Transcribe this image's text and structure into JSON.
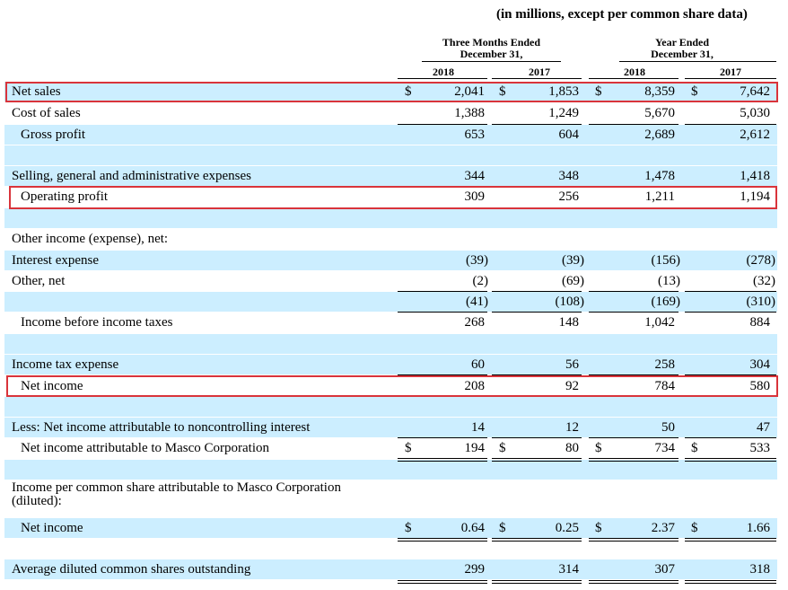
{
  "units_note": "(in millions, except per common share data)",
  "headers": {
    "three_months": [
      "Three Months Ended",
      "December 31,"
    ],
    "year_ended": [
      "Year Ended",
      "December 31,"
    ],
    "years": [
      "2018",
      "2017",
      "2018",
      "2017"
    ]
  },
  "currency": "$",
  "rows": {
    "net_sales": {
      "label": "Net sales",
      "values": [
        "2,041",
        "1,853",
        "8,359",
        "7,642"
      ]
    },
    "cost_of_sales": {
      "label": "Cost of sales",
      "values": [
        "1,388",
        "1,249",
        "5,670",
        "5,030"
      ]
    },
    "gross_profit": {
      "label": "Gross profit",
      "values": [
        "653",
        "604",
        "2,689",
        "2,612"
      ]
    },
    "sga": {
      "label": "Selling, general and administrative expenses",
      "values": [
        "344",
        "348",
        "1,478",
        "1,418"
      ]
    },
    "operating_profit": {
      "label": "Operating profit",
      "values": [
        "309",
        "256",
        "1,211",
        "1,194"
      ]
    },
    "other_income_header": {
      "label": "Other income (expense), net:"
    },
    "interest_expense": {
      "label": "Interest expense",
      "values": [
        "(39)",
        "(39)",
        "(156)",
        "(278)"
      ]
    },
    "other_net": {
      "label": "Other, net",
      "values": [
        "(2)",
        "(69)",
        "(13)",
        "(32)"
      ]
    },
    "other_total": {
      "values": [
        "(41)",
        "(108)",
        "(169)",
        "(310)"
      ]
    },
    "income_before_taxes": {
      "label": "Income before income taxes",
      "values": [
        "268",
        "148",
        "1,042",
        "884"
      ]
    },
    "income_tax": {
      "label": "Income tax expense",
      "values": [
        "60",
        "56",
        "258",
        "304"
      ]
    },
    "net_income": {
      "label": "Net income",
      "values": [
        "208",
        "92",
        "784",
        "580"
      ]
    },
    "nci": {
      "label": "Less: Net income attributable to noncontrolling interest",
      "values": [
        "14",
        "12",
        "50",
        "47"
      ]
    },
    "ni_masco": {
      "label": "Net income attributable to Masco Corporation",
      "values": [
        "194",
        "80",
        "734",
        "533"
      ]
    },
    "eps_header": {
      "label_1": "Income per common share attributable to Masco Corporation",
      "label_2": "(diluted):"
    },
    "eps_net_income": {
      "label": "Net income",
      "values": [
        "0.64",
        "0.25",
        "2.37",
        "1.66"
      ]
    },
    "avg_shares": {
      "label": "Average diluted common shares outstanding",
      "values": [
        "299",
        "314",
        "307",
        "318"
      ]
    }
  }
}
